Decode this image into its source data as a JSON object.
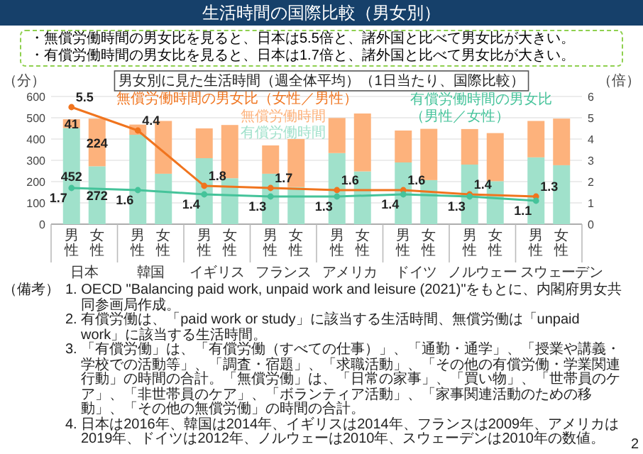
{
  "chart_data": {
    "type": "bar",
    "title": "生活時間の国際比較（男女別）",
    "subtitle": "男女別に見た生活時間（週全体平均）（1日当たり、国際比較）",
    "ylabel": "（分）",
    "y2label": "（倍）",
    "categories": [
      "男性",
      "女性",
      "男性",
      "女性",
      "男性",
      "女性",
      "男性",
      "女性",
      "男性",
      "女性",
      "男性",
      "女性",
      "男性",
      "女性",
      "男性",
      "女性"
    ],
    "annotations": [
      "・無償労働時間の男女比を見ると、日本は5.5倍と、諸外国と比べて男女比が大きい。",
      "・有償労働時間の男女比を見ると、日本は1.7倍と、諸外国と比べて男女比が大きい。",
      "（備考）",
      "1. OECD \"Balancing paid work, unpaid work and leisure (2021)\"をもとに、内閣府男女共同参画局作成。",
      "2. 有償労働は、「paid work or study」に該当する生活時間、無償労働は「unpaid work」に該当する生活時間。",
      "3. 「有償労働」は、「有償労働（すべての仕事）」、「通勤・通学」、「授業や講義・学校での活動等」、「調査・宿題」、「求職活動」、「その他の有償労働・学業関連行動」の時間の合計。「無償労働」は、「日常の家事」、「買い物」、「世帯員のケア」、「非世帯員のケア」、「ボランティア活動」、「家事関連活動のための移動」、「その他の無償労働」の時間の合計。",
      "4. 日本は2016年、韓国は2014年、イギリスは2014年、フランスは2009年、アメリカは2019年、ドイツは2012年、ノルウェーは2010年、スウェーデンは2010年の数値。",
      "2",
      "日本",
      "韓国",
      "イギリス",
      "フランス",
      "アメリカ",
      "ドイツ",
      "ノルウェー",
      "スウェーデン"
    ],
    "series": [
      {
        "name": "有償労働時間",
        "color": "#a0e1cb",
        "values": [
          452,
          272,
          420,
          237,
          310,
          216,
          237,
          174,
          334,
          248,
          290,
          207,
          280,
          202,
          314,
          277
        ],
        "value_labels": [
          "452",
          "272",
          null,
          null,
          null,
          null,
          null,
          null,
          null,
          null,
          null,
          null,
          null,
          null,
          null,
          null
        ]
      },
      {
        "name": "無償労働時間",
        "color": "#fdb27c",
        "values": [
          41,
          224,
          48,
          248,
          140,
          250,
          133,
          226,
          165,
          272,
          150,
          241,
          167,
          226,
          171,
          219
        ],
        "value_labels": [
          "41",
          "224",
          null,
          null,
          null,
          null,
          null,
          null,
          null,
          null,
          null,
          null,
          null,
          null,
          null,
          null
        ]
      },
      {
        "name": "無償労働時間の男女比（女性／男性）",
        "type": "line",
        "axis": "y2",
        "color": "#f0741e",
        "values": [
          5.5,
          null,
          4.4,
          null,
          1.8,
          null,
          1.7,
          null,
          1.6,
          null,
          1.6,
          null,
          1.4,
          null,
          1.3,
          null
        ],
        "value_labels": [
          "5.5",
          null,
          "4.4",
          null,
          "1.8",
          null,
          "1.7",
          null,
          "1.6",
          null,
          "1.6",
          null,
          "1.4",
          null,
          "1.3",
          null
        ]
      },
      {
        "name": "有償労働時間の男女比（男性／女性）",
        "type": "line",
        "axis": "y2",
        "color": "#45c39a",
        "values": [
          1.7,
          null,
          1.6,
          null,
          1.4,
          null,
          1.3,
          null,
          1.3,
          null,
          1.4,
          null,
          1.3,
          null,
          1.1,
          null
        ],
        "value_labels": [
          "1.7",
          null,
          "1.6",
          null,
          "1.4",
          null,
          "1.3",
          null,
          "1.3",
          null,
          "1.4",
          null,
          "1.3",
          null,
          "1.1",
          null
        ]
      }
    ],
    "stacked": true,
    "marker": "circle",
    "grid": "y",
    "ylim": [
      0,
      600
    ],
    "yticks": [
      0,
      100,
      200,
      300,
      400,
      500,
      600
    ],
    "y2lim": [
      0,
      6
    ],
    "y2ticks": [
      0,
      1,
      2,
      3,
      4,
      5,
      6
    ]
  }
}
